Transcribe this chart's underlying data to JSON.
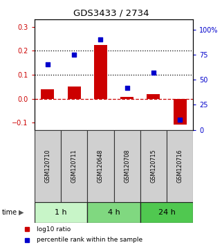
{
  "title": "GDS3433 / 2734",
  "samples": [
    "GSM120710",
    "GSM120711",
    "GSM120648",
    "GSM120708",
    "GSM120715",
    "GSM120716"
  ],
  "log10_ratio": [
    0.04,
    0.05,
    0.225,
    0.008,
    0.02,
    -0.108
  ],
  "percentile_rank": [
    65,
    75,
    90,
    42,
    57,
    10
  ],
  "time_groups": [
    {
      "label": "1 h",
      "color": "#c8f5c8",
      "span": [
        0,
        2
      ]
    },
    {
      "label": "4 h",
      "color": "#80d880",
      "span": [
        2,
        4
      ]
    },
    {
      "label": "24 h",
      "color": "#50c850",
      "span": [
        4,
        6
      ]
    }
  ],
  "left_ylim": [
    -0.13,
    0.33
  ],
  "right_ylim": [
    0,
    110
  ],
  "left_yticks": [
    -0.1,
    0.0,
    0.1,
    0.2,
    0.3
  ],
  "right_yticks": [
    0,
    25,
    50,
    75,
    100
  ],
  "right_yticklabels": [
    "0",
    "25",
    "50",
    "75",
    "100%"
  ],
  "dotted_lines": [
    0.1,
    0.2
  ],
  "bar_color": "#cc0000",
  "dot_color": "#0000cc",
  "zero_line_color": "#cc0000",
  "bg_color": "#ffffff",
  "sample_bg_color": "#d0d0d0",
  "grid_color": "#000000"
}
